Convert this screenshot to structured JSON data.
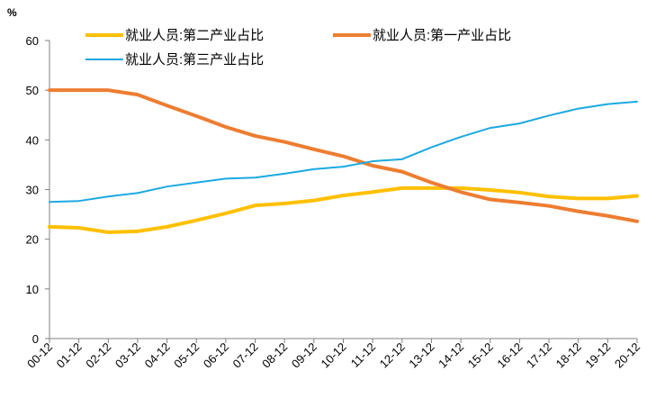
{
  "chart_data": {
    "type": "line",
    "title": "",
    "xlabel": "",
    "ylabel": "%",
    "ylim": [
      0,
      60
    ],
    "yticks": [
      0,
      10,
      20,
      30,
      40,
      50,
      60
    ],
    "grid": false,
    "legend_position": "top",
    "categories": [
      "00-12",
      "01-12",
      "02-12",
      "03-12",
      "04-12",
      "05-12",
      "06-12",
      "07-12",
      "08-12",
      "09-12",
      "10-12",
      "11-12",
      "12-12",
      "13-12",
      "14-12",
      "15-12",
      "16-12",
      "17-12",
      "18-12",
      "19-12",
      "20-12"
    ],
    "series": [
      {
        "name": "就业人员:第二产业占比",
        "color": "#FFC000",
        "values": [
          22.5,
          22.3,
          21.4,
          21.6,
          22.5,
          23.8,
          25.2,
          26.8,
          27.2,
          27.8,
          28.8,
          29.5,
          30.3,
          30.3,
          30.3,
          29.9,
          29.4,
          28.6,
          28.2,
          28.2,
          28.7
        ]
      },
      {
        "name": "就业人员:第一产业占比",
        "color": "#ED7D31",
        "values": [
          50.0,
          50.0,
          50.0,
          49.1,
          46.9,
          44.8,
          42.6,
          40.8,
          39.6,
          38.1,
          36.7,
          34.8,
          33.6,
          31.4,
          29.5,
          28.0,
          27.4,
          26.7,
          25.6,
          24.7,
          23.6
        ]
      },
      {
        "name": "就业人员:第三产业占比",
        "color": "#1CA9E1",
        "values": [
          27.5,
          27.7,
          28.6,
          29.3,
          30.6,
          31.4,
          32.2,
          32.4,
          33.2,
          34.1,
          34.6,
          35.7,
          36.1,
          38.5,
          40.6,
          42.4,
          43.3,
          44.9,
          46.3,
          47.2,
          47.7
        ]
      }
    ]
  }
}
